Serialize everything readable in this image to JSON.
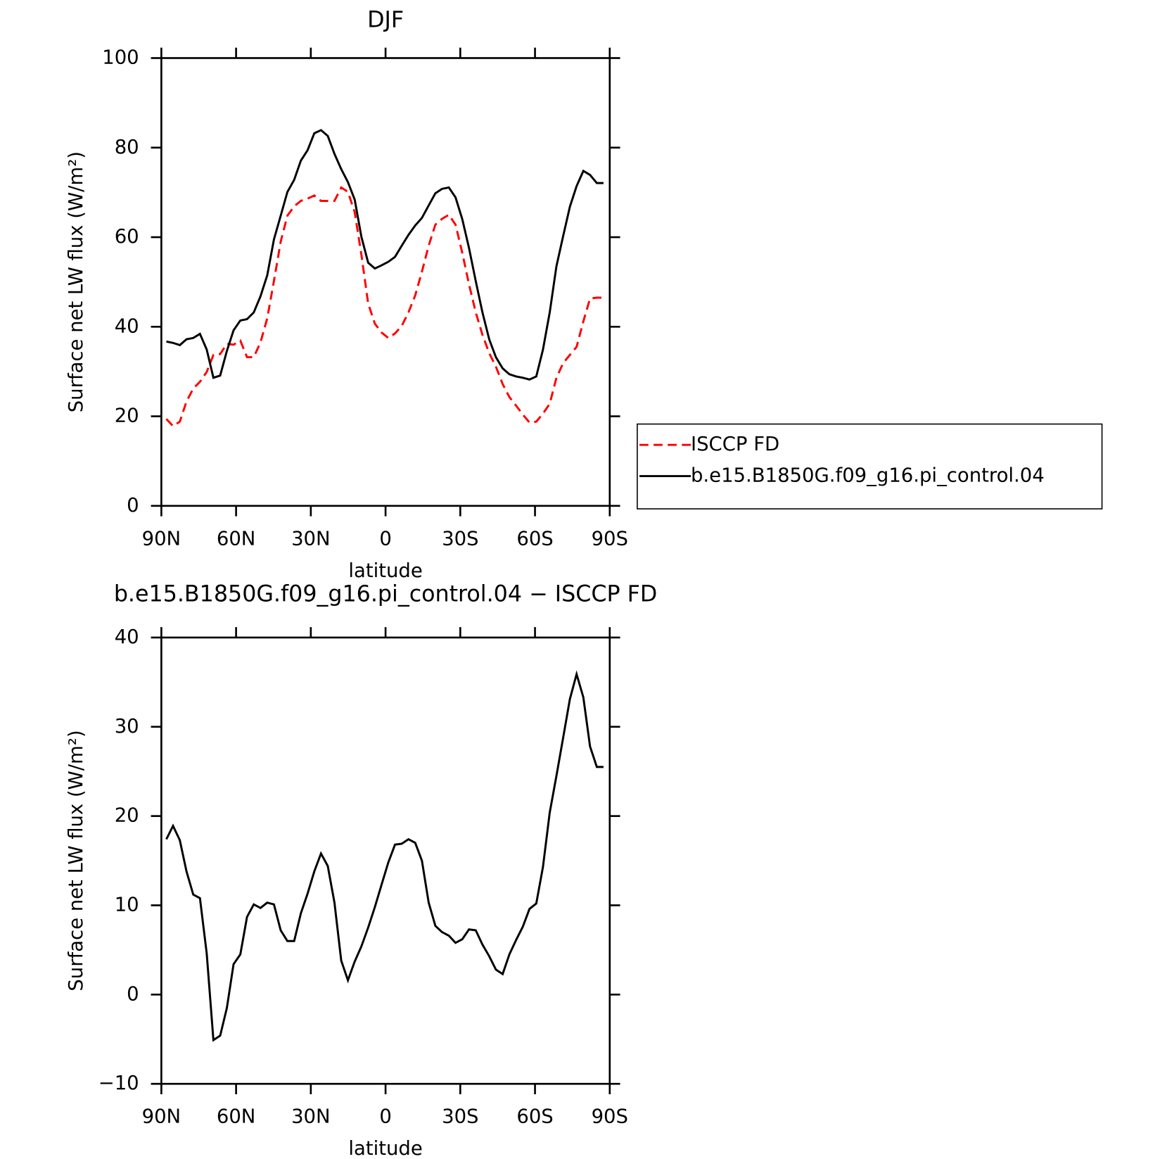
{
  "chart_data": [
    {
      "type": "line",
      "title": "DJF",
      "xlabel": "latitude",
      "ylabel": "Surface net LW flux (W/m²)",
      "xlim": [
        90,
        -90
      ],
      "ylim": [
        0,
        100
      ],
      "xticks": [
        {
          "value": 90,
          "label": "90N"
        },
        {
          "value": 60,
          "label": "60N"
        },
        {
          "value": 30,
          "label": "30N"
        },
        0,
        {
          "value": -30,
          "label": "30S"
        },
        {
          "value": -60,
          "label": "60S"
        },
        {
          "value": -90,
          "label": "90S"
        }
      ],
      "yticks": [
        0,
        20,
        40,
        60,
        80,
        100
      ],
      "legend": "right",
      "x": [
        88,
        85.3,
        82.6,
        79.9,
        77.2,
        74.5,
        71.8,
        69.1,
        66.4,
        63.7,
        61,
        58.3,
        55.6,
        52.9,
        50.2,
        47.5,
        44.8,
        42.1,
        39.4,
        36.7,
        34,
        31.3,
        28.6,
        25.9,
        23.2,
        20.5,
        17.8,
        15.1,
        12.4,
        9.7,
        7,
        4.3,
        1.6,
        -1.1,
        -3.8,
        -6.5,
        -9.2,
        -11.9,
        -14.6,
        -17.3,
        -20,
        -22.7,
        -25.4,
        -28.1,
        -30.8,
        -33.5,
        -36.2,
        -38.9,
        -41.6,
        -44.3,
        -47,
        -49.7,
        -52.4,
        -55.1,
        -57.8,
        -60.5,
        -63.2,
        -65.9,
        -68.6,
        -71.3,
        -74,
        -76.7,
        -79.4,
        -82.1,
        -84.8,
        -87.5
      ],
      "series": [
        {
          "name": "ISCCP FD",
          "color": "#ff0000",
          "dashed": true,
          "values": [
            19.4,
            17.8,
            18.8,
            23.3,
            26.2,
            27.7,
            29.9,
            33.7,
            33.9,
            36.2,
            36.0,
            36.9,
            33.2,
            33.2,
            36.5,
            41.9,
            50.2,
            59.0,
            64.8,
            66.9,
            68.1,
            68.6,
            69.3,
            68.1,
            68.1,
            68.1,
            71.1,
            70.1,
            65.6,
            56.1,
            45.2,
            40.7,
            38.7,
            37.5,
            38.5,
            40.2,
            43.2,
            47.0,
            52.3,
            58.1,
            62.8,
            64.1,
            65.0,
            62.8,
            56.5,
            49.5,
            43.2,
            38.2,
            34.1,
            31.1,
            27.2,
            24.3,
            22.4,
            20.4,
            18.6,
            18.8,
            20.6,
            22.8,
            28.6,
            31.9,
            33.7,
            35.5,
            41.2,
            46.3,
            46.5,
            46.5
          ]
        },
        {
          "name": "b.e15.B1850G.f09_g16.pi_control.04",
          "color": "#000000",
          "dashed": false,
          "values": [
            36.7,
            36.4,
            35.9,
            37.2,
            37.5,
            38.4,
            34.9,
            28.6,
            29.1,
            34.6,
            39.2,
            41.4,
            41.7,
            43.2,
            46.8,
            51.5,
            59.5,
            64.8,
            70.1,
            72.8,
            77.1,
            79.4,
            83.2,
            83.9,
            82.6,
            78.6,
            75.2,
            72.3,
            68.4,
            60.1,
            54.3,
            53.0,
            53.7,
            54.5,
            55.6,
            58.1,
            60.5,
            62.6,
            64.3,
            67.1,
            69.8,
            70.8,
            71.1,
            68.9,
            64.0,
            57.6,
            50.2,
            43.2,
            37.2,
            33.2,
            30.7,
            29.4,
            28.9,
            28.6,
            28.2,
            28.9,
            34.9,
            43.2,
            53.5,
            60.3,
            66.8,
            71.4,
            74.8,
            73.9,
            72.1,
            72.1
          ]
        }
      ]
    },
    {
      "type": "line",
      "title": "b.e15.B1850G.f09_g16.pi_control.04 − ISCCP FD",
      "xlabel": "latitude",
      "ylabel": "Surface net LW flux (W/m²)",
      "xlim": [
        90,
        -90
      ],
      "ylim": [
        -10,
        40
      ],
      "xticks": [
        {
          "value": 90,
          "label": "90N"
        },
        {
          "value": 60,
          "label": "60N"
        },
        {
          "value": 30,
          "label": "30N"
        },
        0,
        {
          "value": -30,
          "label": "30S"
        },
        {
          "value": -60,
          "label": "60S"
        },
        {
          "value": -90,
          "label": "90S"
        }
      ],
      "yticks": [
        {
          "value": -10,
          "label": "−10"
        },
        0,
        10,
        20,
        30,
        40
      ],
      "x": [
        88,
        85.3,
        82.6,
        79.9,
        77.2,
        74.5,
        71.8,
        69.1,
        66.4,
        63.7,
        61,
        58.3,
        55.6,
        52.9,
        50.2,
        47.5,
        44.8,
        42.1,
        39.4,
        36.7,
        34,
        31.3,
        28.6,
        25.9,
        23.2,
        20.5,
        17.8,
        15.1,
        12.4,
        9.7,
        7,
        4.3,
        1.6,
        -1.1,
        -3.8,
        -6.5,
        -9.2,
        -11.9,
        -14.6,
        -17.3,
        -20,
        -22.7,
        -25.4,
        -28.1,
        -30.8,
        -33.5,
        -36.2,
        -38.9,
        -41.6,
        -44.3,
        -47,
        -49.7,
        -52.4,
        -55.1,
        -57.8,
        -60.5,
        -63.2,
        -65.9,
        -68.6,
        -71.3,
        -74,
        -76.7,
        -79.4,
        -82.1,
        -84.8,
        -87.5
      ],
      "series": [
        {
          "color": "#000000",
          "dashed": false,
          "values": [
            17.4,
            18.9,
            17.3,
            13.8,
            11.2,
            10.8,
            4.6,
            -5.1,
            -4.6,
            -1.5,
            3.4,
            4.5,
            8.7,
            10.1,
            9.7,
            10.3,
            10.1,
            7.2,
            6.0,
            6.0,
            9.1,
            11.3,
            13.8,
            15.8,
            14.4,
            10.3,
            3.8,
            1.6,
            3.7,
            5.4,
            7.5,
            9.8,
            12.3,
            14.8,
            16.8,
            16.9,
            17.4,
            17.0,
            15.0,
            10.3,
            7.7,
            7.0,
            6.6,
            5.8,
            6.2,
            7.3,
            7.2,
            5.6,
            4.3,
            2.8,
            2.3,
            4.5,
            6.1,
            7.6,
            9.6,
            10.2,
            14.3,
            20.4,
            24.5,
            28.8,
            33.1,
            35.9,
            33.3,
            27.8,
            25.5,
            25.5
          ]
        }
      ]
    }
  ]
}
